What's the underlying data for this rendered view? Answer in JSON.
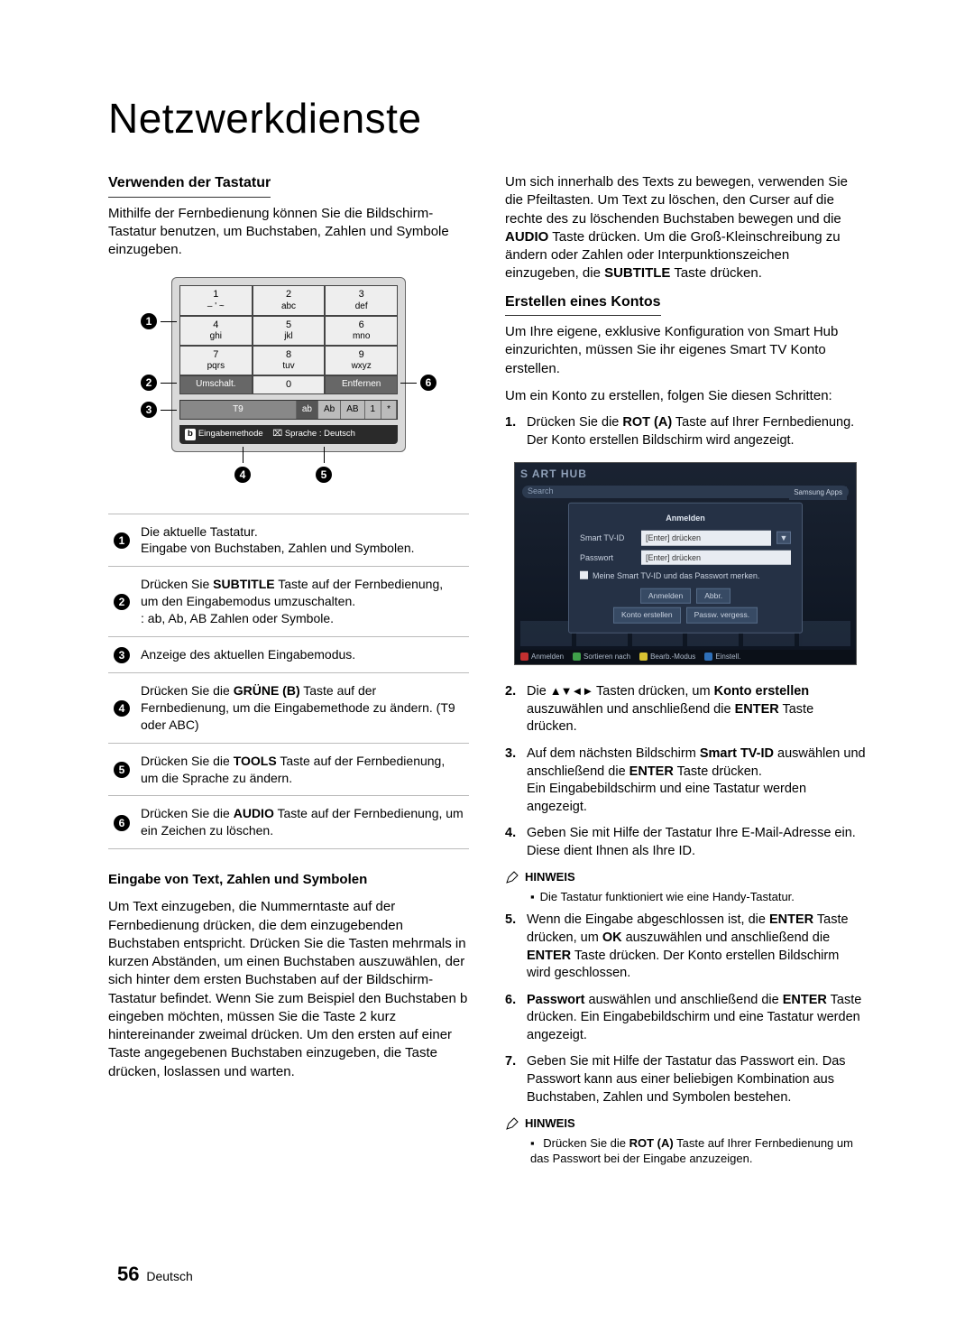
{
  "page": {
    "title": "Netzwerkdienste",
    "number": "56",
    "lang": "Deutsch"
  },
  "leftcol": {
    "h_keyboard": "Verwenden der Tastatur",
    "p_keyboard_intro": "Mithilfe der Fernbedienung können Sie die Bildschirm-Tastatur benutzen, um Buchstaben, Zahlen und Symbole einzugeben.",
    "keyboard": {
      "keys": [
        [
          {
            "n": "1",
            "s": "– ' ~"
          },
          {
            "n": "2",
            "s": "abc"
          },
          {
            "n": "3",
            "s": "def"
          }
        ],
        [
          {
            "n": "4",
            "s": "ghi"
          },
          {
            "n": "5",
            "s": "jkl"
          },
          {
            "n": "6",
            "s": "mno"
          }
        ],
        [
          {
            "n": "7",
            "s": "pqrs"
          },
          {
            "n": "8",
            "s": "tuv"
          },
          {
            "n": "9",
            "s": "wxyz"
          }
        ]
      ],
      "shift": "Umschalt.",
      "zero": "0",
      "delete": "Entfernen",
      "modes_prefix": "T9",
      "modes": [
        "ab",
        "Ab",
        "AB",
        "1",
        "*"
      ],
      "modes_sel_index": 0,
      "bar_b_label": "b",
      "bar_b_text": "Eingabemethode",
      "bar_tools_icon": "⌧",
      "bar_tools_text": "Sprache : Deutsch"
    },
    "legend": [
      {
        "n": "1",
        "text": "Die aktuelle Tastatur.\nEingabe von Buchstaben, Zahlen und Symbolen."
      },
      {
        "n": "2",
        "pre": "Drücken Sie ",
        "b": "SUBTITLE",
        "post": " Taste auf der Fernbedienung, um den Eingabemodus umzuschalten.\n: ab, Ab, AB Zahlen oder Symbole."
      },
      {
        "n": "3",
        "text": "Anzeige des aktuellen Eingabemodus."
      },
      {
        "n": "4",
        "pre": "Drücken Sie die ",
        "b": "GRÜNE (B)",
        "post": " Taste auf der Fernbedienung, um die Eingabemethode zu ändern. (T9 oder ABC)"
      },
      {
        "n": "5",
        "pre": "Drücken Sie die ",
        "b": "TOOLS",
        "post": " Taste auf der Fernbedienung, um die Sprache zu ändern."
      },
      {
        "n": "6",
        "pre": "Drücken Sie die ",
        "b": "AUDIO",
        "post": " Taste auf der Fernbedienung, um ein Zeichen zu löschen."
      }
    ],
    "h_input": "Eingabe von Text, Zahlen und Symbolen",
    "p_input": "Um Text einzugeben, die Nummerntaste auf der Fernbedienung drücken, die dem einzugebenden Buchstaben entspricht. Drücken Sie die Tasten mehrmals in kurzen Abständen, um einen Buchstaben auszuwählen, der sich hinter dem ersten Buchstaben auf der Bildschirm-Tastatur befindet. Wenn Sie zum Beispiel den Buchstaben b eingeben möchten, müssen Sie die Taste 2 kurz hintereinander zweimal drücken. Um den ersten auf einer Taste angegebenen Buchstaben einzugeben, die Taste drücken, loslassen und warten."
  },
  "rightcol": {
    "p_move_pre": "Um sich innerhalb des Texts zu bewegen, verwenden Sie die Pfeiltasten. Um Text zu löschen, den Curser auf die rechte des zu löschenden Buchstaben bewegen und die ",
    "p_move_b1": "AUDIO",
    "p_move_mid": " Taste drücken. Um die Groß-Kleinschreibung zu ändern oder Zahlen oder Interpunktionszeichen einzugeben, die ",
    "p_move_b2": "SUBTITLE",
    "p_move_post": " Taste drücken.",
    "h_account": "Erstellen eines Kontos",
    "p_account1": "Um Ihre eigene, exklusive Konfiguration von Smart Hub einzurichten, müssen Sie ihr eigenes Smart TV Konto erstellen.",
    "p_account2": "Um ein Konto zu erstellen, folgen Sie diesen Schritten:",
    "step1_pre": "Drücken Sie die ",
    "step1_b": "ROT (A)",
    "step1_post": " Taste auf Ihrer Fernbedienung. Der Konto erstellen Bildschirm wird angezeigt.",
    "hub": {
      "logo": "S  ART HUB",
      "search": "Search",
      "samsung_apps": "Samsung Apps",
      "dialog_title": "Anmelden",
      "row_id_label": "Smart TV-ID",
      "row_id_value": "[Enter] drücken",
      "row_pw_label": "Passwort",
      "row_pw_value": "[Enter] drücken",
      "remember": "Meine Smart TV-ID und das Passwort merken.",
      "btn_login": "Anmelden",
      "btn_cancel": "Abbr.",
      "btn_create": "Konto erstellen",
      "btn_forgot": "Passw. vergess.",
      "footer_a": "Anmelden",
      "footer_b": "Sortieren nach",
      "footer_c": "Bearb.-Modus",
      "footer_d": "Einstell.",
      "color_a": "#c43030",
      "color_b": "#3fa04a",
      "color_c": "#d8c232",
      "color_d": "#2e6fb8"
    },
    "step2_pre": "Die ",
    "step2_arrows": "▲▼◄►",
    "step2_mid": " Tasten drücken, um ",
    "step2_b": "Konto erstellen",
    "step2_mid2": " auszuwählen und anschließend die ",
    "step2_b2": "ENTER",
    "step2_post": " Taste drücken.",
    "step3_pre": "Auf dem nächsten Bildschirm ",
    "step3_b": "Smart TV-ID",
    "step3_mid": " auswählen und anschließend die ",
    "step3_b2": "ENTER",
    "step3_post": " Taste drücken.\nEin Eingabebildschirm und eine Tastatur werden angezeigt.",
    "step4": "Geben Sie mit Hilfe der Tastatur Ihre E-Mail-Adresse ein. Diese dient Ihnen als Ihre ID.",
    "note_label": "HINWEIS",
    "note1_bullet": "Die Tastatur funktioniert wie eine Handy-Tastatur.",
    "step5_pre": "Wenn die Eingabe abgeschlossen ist, die ",
    "step5_b1": "ENTER",
    "step5_mid1": " Taste drücken, um ",
    "step5_b2": "OK",
    "step5_mid2": " auszuwählen und anschließend die ",
    "step5_b3": "ENTER",
    "step5_post": " Taste drücken. Der Konto erstellen Bildschirm wird geschlossen.",
    "step6_b1": "Passwort",
    "step6_mid": " auswählen und anschließend die ",
    "step6_b2": "ENTER",
    "step6_post": " Taste drücken. Ein Eingabebildschirm und eine Tastatur werden angezeigt.",
    "step7": "Geben Sie mit Hilfe der Tastatur das Passwort ein. Das Passwort kann aus einer beliebigen Kombination aus Buchstaben, Zahlen und Symbolen bestehen.",
    "note2_pre": "Drücken Sie die ",
    "note2_b": "ROT (A)",
    "note2_post": " Taste auf Ihrer Fernbedienung um das Passwort bei der Eingabe anzuzeigen."
  }
}
